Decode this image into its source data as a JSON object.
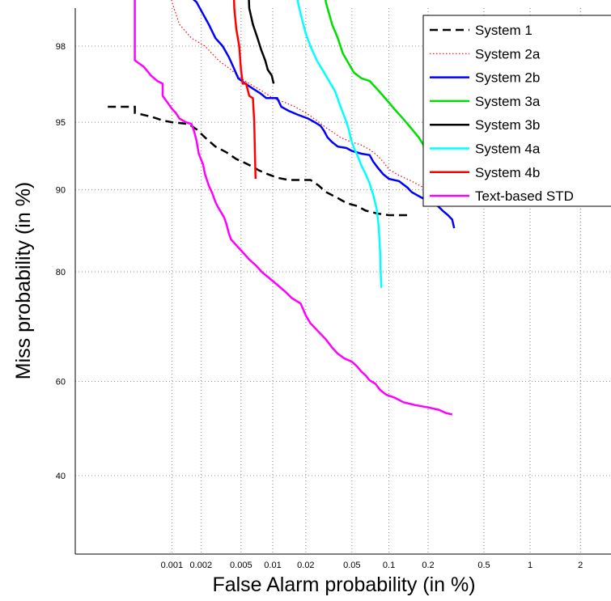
{
  "chart_data": {
    "type": "line",
    "title": "",
    "xlabel": "False Alarm probability (in %)",
    "ylabel": "Miss probability (in %)",
    "x_scale": "normal-deviate",
    "y_scale": "normal-deviate",
    "xlim": [
      0.0002,
      3
    ],
    "ylim": [
      25,
      99.3
    ],
    "grid": "dotted",
    "legend_position": "top-right",
    "x_ticks": [
      {
        "value": 0.001,
        "label": "0.001"
      },
      {
        "value": 0.002,
        "label": "0.002"
      },
      {
        "value": 0.005,
        "label": "0.005"
      },
      {
        "value": 0.01,
        "label": "0.01"
      },
      {
        "value": 0.02,
        "label": "0.02"
      },
      {
        "value": 0.05,
        "label": "0.05"
      },
      {
        "value": 0.1,
        "label": "0.1"
      },
      {
        "value": 0.2,
        "label": "0.2"
      },
      {
        "value": 0.5,
        "label": "0.5"
      },
      {
        "value": 1,
        "label": "1"
      },
      {
        "value": 2,
        "label": "2"
      }
    ],
    "y_ticks": [
      {
        "value": 40,
        "label": "40"
      },
      {
        "value": 60,
        "label": "60"
      },
      {
        "value": 80,
        "label": "80"
      },
      {
        "value": 90,
        "label": "90"
      },
      {
        "value": 95,
        "label": "95"
      },
      {
        "value": 98,
        "label": "98"
      }
    ],
    "series": [
      {
        "name": "System 1",
        "color": "#000000",
        "dash": "10,6",
        "width": 2.5,
        "points": [
          [
            0.0002,
            95.8
          ],
          [
            0.0004,
            95.8
          ],
          [
            0.0004,
            95.5
          ],
          [
            0.0006,
            95.3
          ],
          [
            0.0008,
            95.1
          ],
          [
            0.001,
            95.0
          ],
          [
            0.0015,
            94.9
          ],
          [
            0.0018,
            94.6
          ],
          [
            0.0022,
            94.1
          ],
          [
            0.0028,
            93.5
          ],
          [
            0.0036,
            93.1
          ],
          [
            0.0045,
            92.6
          ],
          [
            0.0055,
            92.3
          ],
          [
            0.0065,
            92.0
          ],
          [
            0.0075,
            91.7
          ],
          [
            0.009,
            91.4
          ],
          [
            0.011,
            91.1
          ],
          [
            0.014,
            90.9
          ],
          [
            0.017,
            90.9
          ],
          [
            0.022,
            90.9
          ],
          [
            0.026,
            90.4
          ],
          [
            0.03,
            89.8
          ],
          [
            0.038,
            89.2
          ],
          [
            0.045,
            88.7
          ],
          [
            0.055,
            88.4
          ],
          [
            0.065,
            87.9
          ],
          [
            0.08,
            87.6
          ],
          [
            0.1,
            87.4
          ],
          [
            0.12,
            87.4
          ],
          [
            0.14,
            87.4
          ]
        ]
      },
      {
        "name": "System 2a",
        "color": "#ff0000",
        "dash": "1.5,2.5",
        "width": 1.2,
        "points": [
          [
            0.0009,
            99.3
          ],
          [
            0.001,
            98.9
          ],
          [
            0.0012,
            98.5
          ],
          [
            0.0016,
            98.2
          ],
          [
            0.0022,
            98.0
          ],
          [
            0.003,
            97.6
          ],
          [
            0.004,
            97.3
          ],
          [
            0.005,
            97.0
          ],
          [
            0.006,
            96.8
          ],
          [
            0.008,
            96.5
          ],
          [
            0.01,
            96.2
          ],
          [
            0.013,
            96.0
          ],
          [
            0.016,
            95.8
          ],
          [
            0.02,
            95.5
          ],
          [
            0.025,
            95.1
          ],
          [
            0.03,
            94.7
          ],
          [
            0.035,
            94.4
          ],
          [
            0.04,
            94.1
          ],
          [
            0.05,
            93.8
          ],
          [
            0.06,
            93.6
          ],
          [
            0.07,
            93.3
          ],
          [
            0.08,
            92.9
          ],
          [
            0.09,
            92.4
          ],
          [
            0.1,
            91.8
          ],
          [
            0.12,
            91.3
          ],
          [
            0.15,
            90.8
          ],
          [
            0.18,
            90.3
          ],
          [
            0.2,
            89.9
          ]
        ]
      },
      {
        "name": "System 2b",
        "color": "#0000ff",
        "dash": "",
        "width": 2.5,
        "points": [
          [
            0.00075,
            99.3
          ],
          [
            0.001,
            99.1
          ],
          [
            0.0015,
            99.0
          ],
          [
            0.0018,
            98.9
          ],
          [
            0.0021,
            98.7
          ],
          [
            0.0024,
            98.5
          ],
          [
            0.0028,
            98.2
          ],
          [
            0.0033,
            98.0
          ],
          [
            0.0038,
            97.7
          ],
          [
            0.0042,
            97.4
          ],
          [
            0.0047,
            97.0
          ],
          [
            0.0055,
            96.8
          ],
          [
            0.0065,
            96.6
          ],
          [
            0.0077,
            96.4
          ],
          [
            0.0087,
            96.2
          ],
          [
            0.0095,
            96.2
          ],
          [
            0.011,
            96.2
          ],
          [
            0.012,
            95.8
          ],
          [
            0.014,
            95.6
          ],
          [
            0.017,
            95.4
          ],
          [
            0.021,
            95.2
          ],
          [
            0.024,
            95.0
          ],
          [
            0.027,
            94.8
          ],
          [
            0.029,
            94.5
          ],
          [
            0.031,
            94.1
          ],
          [
            0.034,
            93.8
          ],
          [
            0.038,
            93.5
          ],
          [
            0.045,
            93.4
          ],
          [
            0.05,
            93.2
          ],
          [
            0.06,
            93.0
          ],
          [
            0.07,
            92.9
          ],
          [
            0.075,
            92.4
          ],
          [
            0.082,
            91.9
          ],
          [
            0.09,
            91.4
          ],
          [
            0.1,
            91.0
          ],
          [
            0.12,
            90.8
          ],
          [
            0.14,
            90.2
          ],
          [
            0.15,
            89.8
          ],
          [
            0.17,
            89.4
          ],
          [
            0.2,
            88.9
          ],
          [
            0.22,
            88.7
          ],
          [
            0.24,
            88.3
          ],
          [
            0.26,
            87.8
          ],
          [
            0.28,
            87.4
          ],
          [
            0.3,
            86.9
          ],
          [
            0.31,
            85.9
          ]
        ]
      },
      {
        "name": "System 3a",
        "color": "#00dd00",
        "dash": "",
        "width": 2.5,
        "points": [
          [
            0.029,
            99.3
          ],
          [
            0.03,
            98.9
          ],
          [
            0.034,
            98.5
          ],
          [
            0.038,
            98.2
          ],
          [
            0.042,
            97.8
          ],
          [
            0.047,
            97.5
          ],
          [
            0.052,
            97.2
          ],
          [
            0.06,
            97.0
          ],
          [
            0.07,
            96.9
          ],
          [
            0.08,
            96.6
          ],
          [
            0.09,
            96.3
          ],
          [
            0.1,
            96.0
          ],
          [
            0.11,
            95.7
          ],
          [
            0.125,
            95.3
          ],
          [
            0.14,
            94.9
          ],
          [
            0.155,
            94.5
          ],
          [
            0.17,
            94.1
          ],
          [
            0.185,
            93.6
          ],
          [
            0.19,
            92.5
          ]
        ]
      },
      {
        "name": "System 3b",
        "color": "#000000",
        "dash": "",
        "width": 2.5,
        "points": [
          [
            0.0058,
            99.3
          ],
          [
            0.006,
            98.8
          ],
          [
            0.0065,
            98.5
          ],
          [
            0.0072,
            98.2
          ],
          [
            0.0078,
            97.9
          ],
          [
            0.0085,
            97.6
          ],
          [
            0.009,
            97.3
          ],
          [
            0.0098,
            97.1
          ],
          [
            0.0102,
            96.8
          ]
        ]
      },
      {
        "name": "System 4a",
        "color": "#00ffff",
        "dash": "",
        "width": 2.5,
        "points": [
          [
            0.016,
            99.3
          ],
          [
            0.0165,
            99.0
          ],
          [
            0.018,
            98.7
          ],
          [
            0.02,
            98.3
          ],
          [
            0.022,
            98.0
          ],
          [
            0.025,
            97.6
          ],
          [
            0.028,
            97.3
          ],
          [
            0.032,
            96.9
          ],
          [
            0.036,
            96.5
          ],
          [
            0.039,
            96.0
          ],
          [
            0.042,
            95.5
          ],
          [
            0.045,
            95.0
          ],
          [
            0.047,
            94.6
          ],
          [
            0.049,
            94.0
          ],
          [
            0.052,
            93.4
          ],
          [
            0.056,
            92.8
          ],
          [
            0.06,
            92.1
          ],
          [
            0.065,
            91.4
          ],
          [
            0.07,
            90.6
          ],
          [
            0.075,
            89.5
          ],
          [
            0.08,
            88.0
          ],
          [
            0.083,
            86.0
          ],
          [
            0.085,
            83.0
          ],
          [
            0.086,
            80.0
          ],
          [
            0.087,
            77.5
          ]
        ]
      },
      {
        "name": "System 4b",
        "color": "#ff0000",
        "dash": "",
        "width": 2.5,
        "points": [
          [
            0.0042,
            99.3
          ],
          [
            0.0043,
            98.8
          ],
          [
            0.0045,
            98.4
          ],
          [
            0.0048,
            98.0
          ],
          [
            0.005,
            97.3
          ],
          [
            0.0052,
            96.8
          ],
          [
            0.0056,
            96.8
          ],
          [
            0.006,
            96.3
          ],
          [
            0.0065,
            96.2
          ],
          [
            0.0067,
            95.0
          ],
          [
            0.0068,
            93.0
          ],
          [
            0.0069,
            91.0
          ]
        ]
      },
      {
        "name": "Text-based STD",
        "color": "#ff00ff",
        "dash": "",
        "width": 2.5,
        "points": [
          [
            0.0004,
            99.3
          ],
          [
            0.0004,
            98.5
          ],
          [
            0.0004,
            97.6
          ],
          [
            0.0005,
            97.4
          ],
          [
            0.0006,
            97.1
          ],
          [
            0.0007,
            96.9
          ],
          [
            0.0008,
            96.8
          ],
          [
            0.0008,
            96.3
          ],
          [
            0.0009,
            96.0
          ],
          [
            0.001,
            95.7
          ],
          [
            0.0011,
            95.5
          ],
          [
            0.0012,
            95.2
          ],
          [
            0.0014,
            95.0
          ],
          [
            0.0016,
            94.9
          ],
          [
            0.0017,
            94.5
          ],
          [
            0.0018,
            93.9
          ],
          [
            0.0019,
            93.0
          ],
          [
            0.0021,
            92.2
          ],
          [
            0.0022,
            91.4
          ],
          [
            0.0024,
            90.4
          ],
          [
            0.0026,
            89.7
          ],
          [
            0.0028,
            88.8
          ],
          [
            0.003,
            88.2
          ],
          [
            0.0034,
            87.2
          ],
          [
            0.0036,
            86.4
          ],
          [
            0.0038,
            85.3
          ],
          [
            0.004,
            84.5
          ],
          [
            0.0046,
            83.6
          ],
          [
            0.0052,
            82.8
          ],
          [
            0.006,
            81.8
          ],
          [
            0.007,
            80.9
          ],
          [
            0.008,
            79.9
          ],
          [
            0.0095,
            78.9
          ],
          [
            0.011,
            78.0
          ],
          [
            0.013,
            76.9
          ],
          [
            0.015,
            75.8
          ],
          [
            0.018,
            74.9
          ],
          [
            0.02,
            72.8
          ],
          [
            0.022,
            71.4
          ],
          [
            0.026,
            69.8
          ],
          [
            0.03,
            68.4
          ],
          [
            0.034,
            66.8
          ],
          [
            0.038,
            65.6
          ],
          [
            0.043,
            64.7
          ],
          [
            0.05,
            64.0
          ],
          [
            0.055,
            63.1
          ],
          [
            0.06,
            62.0
          ],
          [
            0.065,
            61.2
          ],
          [
            0.07,
            60.2
          ],
          [
            0.078,
            59.5
          ],
          [
            0.085,
            58.2
          ],
          [
            0.095,
            57.2
          ],
          [
            0.11,
            56.6
          ],
          [
            0.13,
            55.6
          ],
          [
            0.16,
            55.0
          ],
          [
            0.2,
            54.5
          ],
          [
            0.24,
            54.0
          ],
          [
            0.27,
            53.3
          ],
          [
            0.3,
            53.0
          ]
        ]
      }
    ]
  }
}
